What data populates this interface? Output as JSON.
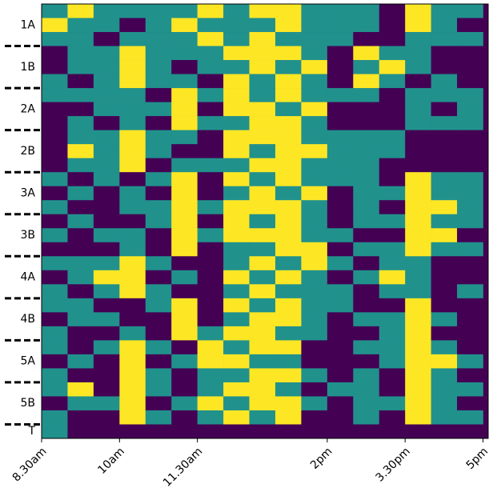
{
  "chart_data": {
    "type": "heatmap",
    "colors": [
      "#440154",
      "#21918c",
      "#fde725"
    ],
    "xbins": [
      8.5,
      9,
      9.5,
      10,
      10.5,
      11,
      11.5,
      12,
      12.5,
      13,
      13.5,
      14,
      14.5,
      15,
      15.5,
      16,
      16.5,
      17
    ],
    "xlim": [
      8.5,
      17.1
    ],
    "xticks": [
      {
        "value": 8.5,
        "label": "8.30am"
      },
      {
        "value": 10,
        "label": "10am"
      },
      {
        "value": 11.5,
        "label": "11.30am"
      },
      {
        "value": 14,
        "label": "2pm"
      },
      {
        "value": 15.5,
        "label": "3.30pm"
      },
      {
        "value": 17,
        "label": "5pm"
      }
    ],
    "groups": [
      {
        "name": "1A",
        "rows": [
          [
            1,
            2,
            1,
            1,
            1,
            1,
            2,
            1,
            2,
            2,
            1,
            1,
            1,
            0,
            2,
            1,
            1
          ],
          [
            2,
            1,
            1,
            0,
            1,
            2,
            1,
            1,
            1,
            2,
            1,
            1,
            1,
            0,
            2,
            1,
            0
          ],
          [
            1,
            1,
            0,
            1,
            1,
            1,
            2,
            1,
            2,
            1,
            1,
            1,
            0,
            0,
            1,
            1,
            1
          ]
        ]
      },
      {
        "name": "1B",
        "rows": [
          [
            0,
            1,
            1,
            2,
            1,
            1,
            1,
            2,
            2,
            2,
            1,
            0,
            2,
            1,
            1,
            0,
            0
          ],
          [
            0,
            1,
            1,
            2,
            1,
            0,
            1,
            1,
            2,
            1,
            2,
            0,
            1,
            2,
            1,
            0,
            0
          ],
          [
            1,
            0,
            1,
            2,
            1,
            1,
            0,
            2,
            1,
            2,
            1,
            0,
            2,
            1,
            0,
            1,
            0
          ]
        ]
      },
      {
        "name": "2A",
        "rows": [
          [
            1,
            1,
            1,
            1,
            0,
            2,
            1,
            2,
            1,
            2,
            1,
            1,
            1,
            0,
            1,
            1,
            1
          ],
          [
            0,
            0,
            1,
            1,
            1,
            2,
            0,
            2,
            2,
            1,
            2,
            0,
            0,
            0,
            1,
            0,
            1
          ],
          [
            0,
            1,
            0,
            1,
            0,
            2,
            1,
            1,
            2,
            2,
            1,
            0,
            0,
            0,
            1,
            1,
            1
          ]
        ]
      },
      {
        "name": "2B",
        "rows": [
          [
            0,
            1,
            1,
            2,
            1,
            1,
            0,
            2,
            2,
            2,
            1,
            1,
            1,
            1,
            0,
            0,
            0
          ],
          [
            0,
            2,
            1,
            2,
            1,
            0,
            0,
            2,
            1,
            2,
            2,
            1,
            1,
            1,
            0,
            0,
            0
          ],
          [
            0,
            1,
            1,
            2,
            0,
            1,
            1,
            1,
            2,
            2,
            1,
            1,
            1,
            0,
            0,
            0,
            0
          ]
        ]
      },
      {
        "name": "3A",
        "rows": [
          [
            1,
            0,
            1,
            0,
            1,
            2,
            0,
            2,
            1,
            2,
            1,
            1,
            1,
            0,
            2,
            1,
            1
          ],
          [
            0,
            1,
            0,
            1,
            0,
            2,
            0,
            1,
            2,
            1,
            2,
            0,
            1,
            1,
            2,
            1,
            1
          ],
          [
            1,
            0,
            0,
            1,
            1,
            2,
            1,
            2,
            2,
            2,
            1,
            0,
            1,
            0,
            2,
            2,
            1
          ]
        ]
      },
      {
        "name": "3B",
        "rows": [
          [
            0,
            1,
            0,
            0,
            1,
            2,
            0,
            2,
            1,
            2,
            1,
            0,
            1,
            1,
            2,
            1,
            1
          ],
          [
            1,
            0,
            1,
            1,
            0,
            2,
            1,
            2,
            2,
            2,
            1,
            1,
            0,
            0,
            2,
            2,
            0
          ],
          [
            0,
            0,
            0,
            1,
            0,
            2,
            0,
            1,
            1,
            2,
            2,
            0,
            1,
            1,
            2,
            1,
            1
          ]
        ]
      },
      {
        "name": "4A",
        "rows": [
          [
            1,
            1,
            1,
            2,
            1,
            0,
            0,
            1,
            2,
            1,
            2,
            1,
            0,
            1,
            1,
            0,
            0
          ],
          [
            0,
            1,
            2,
            2,
            0,
            1,
            0,
            2,
            1,
            2,
            1,
            0,
            1,
            2,
            1,
            0,
            0
          ],
          [
            1,
            0,
            1,
            2,
            1,
            0,
            0,
            1,
            2,
            1,
            1,
            1,
            0,
            1,
            1,
            0,
            1
          ]
        ]
      },
      {
        "name": "4B",
        "rows": [
          [
            1,
            1,
            0,
            0,
            1,
            2,
            0,
            2,
            1,
            2,
            1,
            1,
            0,
            0,
            2,
            0,
            0
          ],
          [
            0,
            1,
            1,
            0,
            0,
            2,
            0,
            1,
            2,
            2,
            1,
            0,
            1,
            1,
            2,
            1,
            0
          ],
          [
            1,
            0,
            0,
            1,
            0,
            2,
            1,
            2,
            2,
            1,
            1,
            0,
            0,
            1,
            2,
            0,
            0
          ]
        ]
      },
      {
        "name": "5A",
        "rows": [
          [
            1,
            0,
            1,
            2,
            1,
            0,
            2,
            1,
            2,
            2,
            0,
            0,
            1,
            1,
            2,
            1,
            0
          ],
          [
            0,
            1,
            0,
            2,
            0,
            1,
            2,
            2,
            1,
            1,
            0,
            0,
            0,
            1,
            2,
            2,
            1
          ],
          [
            1,
            0,
            0,
            2,
            1,
            0,
            1,
            1,
            2,
            2,
            1,
            0,
            1,
            0,
            2,
            1,
            0
          ]
        ]
      },
      {
        "name": "5B",
        "rows": [
          [
            1,
            2,
            0,
            2,
            1,
            0,
            1,
            2,
            2,
            1,
            0,
            1,
            1,
            0,
            2,
            1,
            1
          ],
          [
            0,
            1,
            1,
            2,
            0,
            1,
            2,
            1,
            2,
            2,
            1,
            0,
            1,
            1,
            2,
            1,
            0
          ],
          [
            1,
            0,
            0,
            2,
            1,
            0,
            1,
            2,
            1,
            2,
            0,
            0,
            1,
            0,
            2,
            1,
            1
          ]
        ]
      },
      {
        "name": "T",
        "rows": [
          [
            1,
            0,
            0,
            0,
            0,
            0,
            0,
            0,
            0,
            0,
            0,
            0,
            0,
            0,
            0,
            0,
            0
          ]
        ]
      }
    ]
  }
}
